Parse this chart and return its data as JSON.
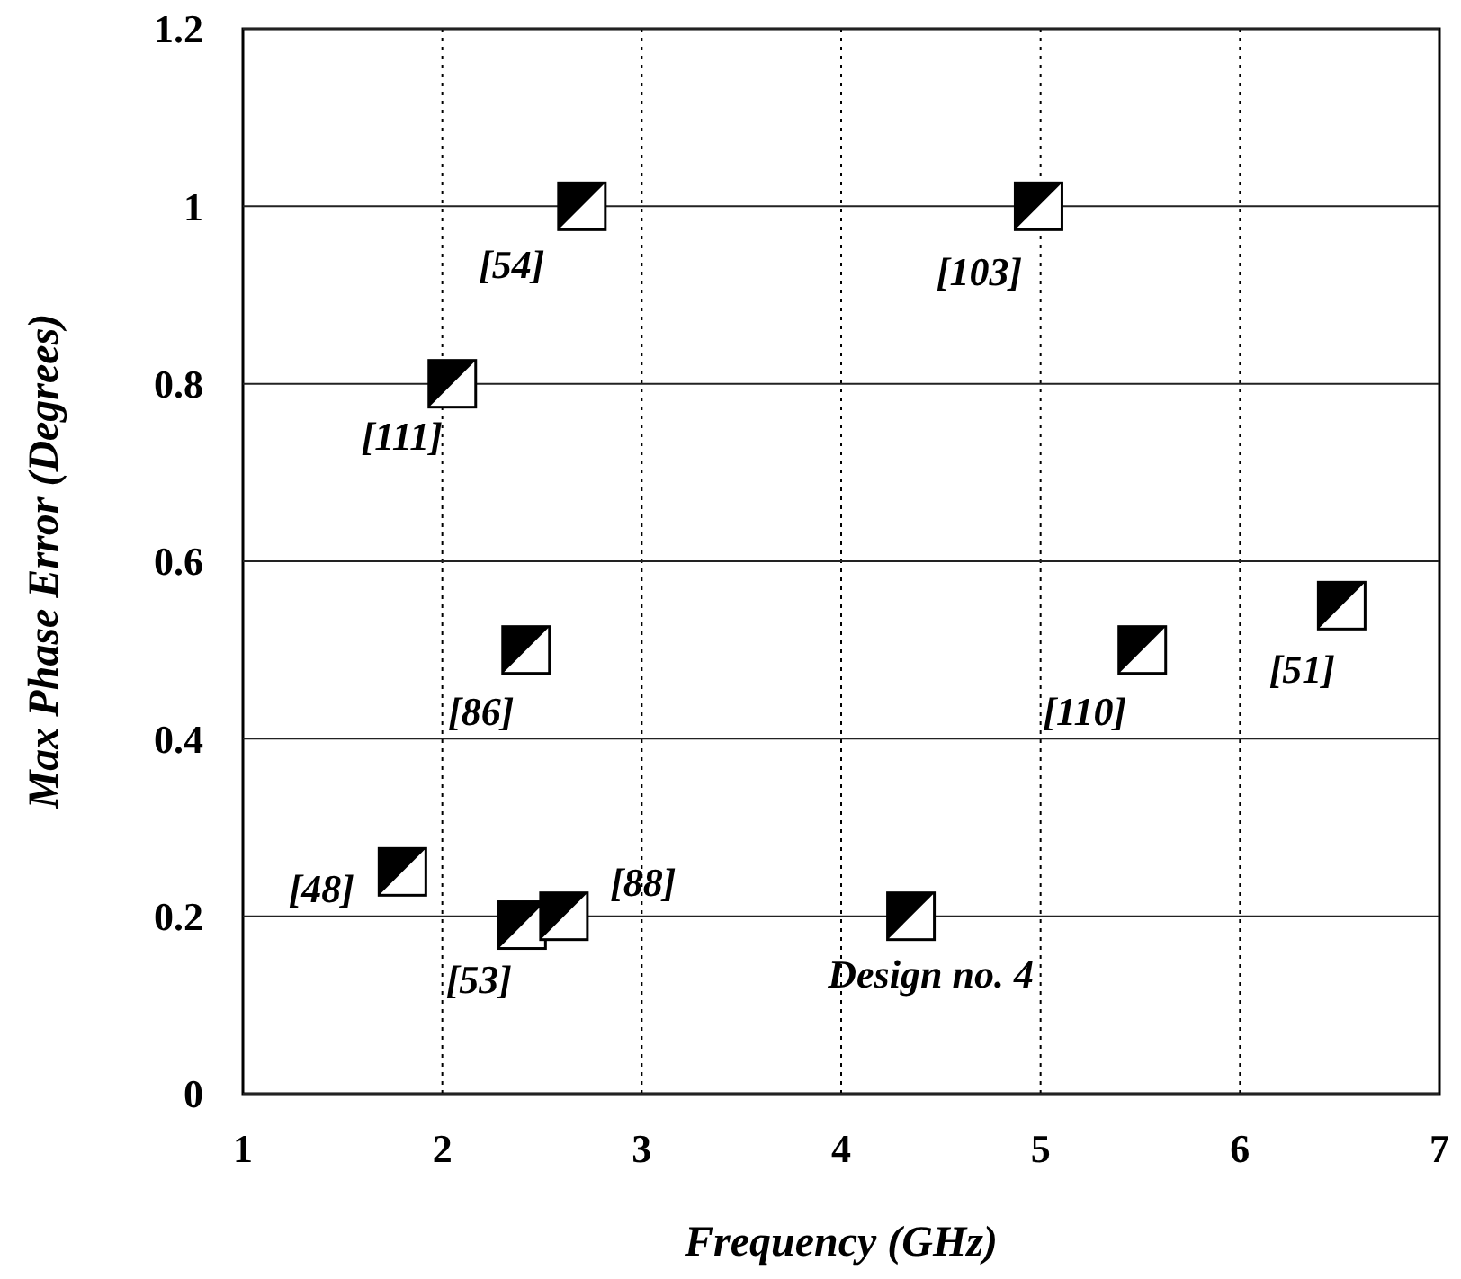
{
  "chart_data": {
    "type": "scatter",
    "xlabel": "Frequency (GHz)",
    "ylabel": "Max Phase Error (Degrees)",
    "x": [
      2.7,
      2.05,
      2.42,
      1.8,
      2.4,
      2.61,
      4.99,
      4.35,
      5.51,
      6.51
    ],
    "values": [
      1.0,
      0.8,
      0.5,
      0.25,
      0.19,
      0.2,
      1.0,
      0.2,
      0.5,
      0.55
    ],
    "color": "#000000",
    "marker": "square",
    "xlim": [
      1,
      7
    ],
    "xticks": [
      1,
      2,
      3,
      4,
      5,
      6,
      7
    ],
    "ylim": [
      0,
      1.2
    ],
    "yticks": [
      0,
      0.2,
      0.4,
      0.6,
      0.8,
      1,
      1.2
    ],
    "grid": true,
    "annotations": [
      {
        "text": "[54]",
        "x": 2.7,
        "y": 1.0
      },
      {
        "text": "[111]",
        "x": 2.05,
        "y": 0.8
      },
      {
        "text": "[86]",
        "x": 2.42,
        "y": 0.5
      },
      {
        "text": "[48]",
        "x": 1.8,
        "y": 0.25
      },
      {
        "text": "[53]",
        "x": 2.4,
        "y": 0.19
      },
      {
        "text": "[88]",
        "x": 2.61,
        "y": 0.2
      },
      {
        "text": "[103]",
        "x": 4.99,
        "y": 1.0
      },
      {
        "text": "Design no. 4",
        "x": 4.35,
        "y": 0.2
      },
      {
        "text": "[110]",
        "x": 5.51,
        "y": 0.5
      },
      {
        "text": "[51]",
        "x": 6.51,
        "y": 0.55
      }
    ]
  }
}
